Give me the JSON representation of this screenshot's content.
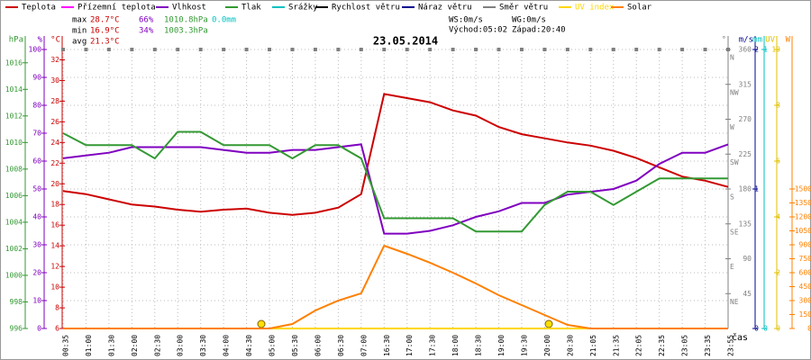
{
  "chart_data": {
    "type": "line",
    "title": "23.05.2014",
    "x_label": "čas",
    "stats": {
      "max": [
        "max",
        "28.7°C",
        "66%",
        "1010.8hPa",
        "0.0mm"
      ],
      "min": [
        "min",
        "16.9°C",
        "34%",
        "1003.3hPa"
      ],
      "avg": [
        "avg",
        "21.3°C"
      ],
      "wind": [
        "WS:0m/s",
        "WG:0m/s"
      ],
      "sun": [
        "Východ:05:02",
        "Západ:20:40"
      ]
    },
    "categories": [
      "00:35",
      "01:00",
      "01:30",
      "02:00",
      "02:30",
      "03:00",
      "03:30",
      "04:00",
      "04:30",
      "05:00",
      "05:30",
      "06:00",
      "06:30",
      "07:00",
      "16:30",
      "17:00",
      "17:30",
      "18:00",
      "18:30",
      "19:00",
      "19:30",
      "20:00",
      "20:30",
      "21:05",
      "21:35",
      "22:05",
      "22:35",
      "23:05",
      "23:35",
      "23:55"
    ],
    "grid": true,
    "axes": {
      "pressure": {
        "unit": "hPa",
        "color": "#339933",
        "lim": [
          996,
          1017
        ],
        "ticks": [
          996,
          998,
          1000,
          1002,
          1004,
          1006,
          1008,
          1010,
          1012,
          1014,
          1016
        ]
      },
      "humidity": {
        "unit": "%",
        "color": "#8000c0",
        "lim": [
          0,
          100
        ],
        "ticks": [
          0,
          10,
          20,
          30,
          40,
          50,
          60,
          70,
          80,
          90,
          100
        ]
      },
      "temp": {
        "unit": "°C",
        "color": "#cc0000",
        "lim": [
          6,
          33
        ],
        "ticks": [
          6,
          8,
          10,
          12,
          14,
          16,
          18,
          20,
          22,
          24,
          26,
          28,
          30,
          32
        ]
      },
      "direction": {
        "unit": "°",
        "color": "#808080",
        "lim": [
          0,
          360
        ],
        "ticks": [
          45,
          90,
          135,
          180,
          225,
          270,
          315,
          360
        ],
        "compass": [
          {
            "value": 45,
            "label": "NE"
          },
          {
            "value": 90,
            "label": "E"
          },
          {
            "value": 135,
            "label": "SE"
          },
          {
            "value": 180,
            "label": "S"
          },
          {
            "value": 225,
            "label": "SW"
          },
          {
            "value": 270,
            "label": "W"
          },
          {
            "value": 315,
            "label": "NW"
          },
          {
            "value": 360,
            "label": "N"
          }
        ]
      },
      "wind": {
        "unit": "m/s",
        "color": "#000090",
        "lim": [
          0,
          2
        ],
        "ticks": [
          0,
          1,
          2
        ]
      },
      "rain": {
        "unit": "mm",
        "color": "#00c0c0",
        "lim": [
          0,
          1
        ],
        "ticks": [
          0,
          1
        ]
      },
      "uv": {
        "unit": "UV",
        "color": "#e0c000",
        "lim": [
          0,
          10
        ],
        "ticks": [
          0,
          2,
          4,
          6,
          8,
          10
        ]
      },
      "solar": {
        "unit": "W",
        "color": "#ff8000",
        "lim": [
          0,
          3000
        ],
        "ticks": [
          0,
          150,
          300,
          450,
          600,
          750,
          900,
          1050,
          1200,
          1350,
          1500
        ]
      }
    },
    "series": [
      {
        "name": "Teplota",
        "color": "#cc0000",
        "axis": "temp",
        "values": [
          19.3,
          19.0,
          18.5,
          18.0,
          17.8,
          17.5,
          17.3,
          17.5,
          17.6,
          17.2,
          17.0,
          17.2,
          17.7,
          19.0,
          28.7,
          28.3,
          27.9,
          27.1,
          26.6,
          25.5,
          24.8,
          24.4,
          24.0,
          23.7,
          23.2,
          22.5,
          21.6,
          20.7,
          20.3,
          19.7
        ]
      },
      {
        "name": "Přízemní teplota",
        "color": "#ff00ff",
        "axis": "temp",
        "values": [
          null,
          null,
          null,
          null,
          null,
          null,
          null,
          null,
          null,
          null,
          null,
          null,
          null,
          null,
          null,
          null,
          null,
          null,
          null,
          null,
          null,
          null,
          null,
          null,
          null,
          null,
          null,
          null,
          null,
          null
        ]
      },
      {
        "name": "Vlhkost",
        "color": "#8000c0",
        "axis": "humidity",
        "values": [
          61,
          62,
          63,
          65,
          65,
          65,
          65,
          64,
          63,
          63,
          64,
          64,
          65,
          66,
          34,
          34,
          35,
          37,
          40,
          42,
          45,
          45,
          48,
          49,
          50,
          53,
          59,
          63,
          63,
          66
        ]
      },
      {
        "name": "Tlak",
        "color": "#339933",
        "axis": "pressure",
        "values": [
          1010.7,
          1009.8,
          1009.8,
          1009.8,
          1008.8,
          1010.8,
          1010.8,
          1009.8,
          1009.8,
          1009.8,
          1008.8,
          1009.8,
          1009.8,
          1008.8,
          1004.3,
          1004.3,
          1004.3,
          1004.3,
          1003.3,
          1003.3,
          1003.3,
          1005.3,
          1006.3,
          1006.3,
          1005.3,
          1006.3,
          1007.3,
          1007.3,
          1007.3,
          1007.3
        ]
      },
      {
        "name": "Srážky",
        "color": "#00c0c0",
        "axis": "rain",
        "values": [
          0,
          0,
          0,
          0,
          0,
          0,
          0,
          0,
          0,
          0,
          0,
          0,
          0,
          0,
          0,
          0,
          0,
          0,
          0,
          0,
          0,
          0,
          0,
          0,
          0,
          0,
          0,
          0,
          0,
          0
        ]
      },
      {
        "name": "Rychlost větru",
        "color": "#000000",
        "axis": "wind",
        "values": [
          0,
          0,
          0,
          0,
          0,
          0,
          0,
          0,
          0,
          0,
          0,
          0,
          0,
          0,
          0,
          0,
          0,
          0,
          0,
          0,
          0,
          0,
          0,
          0,
          0,
          0,
          0,
          0,
          0,
          0
        ]
      },
      {
        "name": "Náraz větru",
        "color": "#000090",
        "axis": "wind",
        "values": [
          0,
          0,
          0,
          0,
          0,
          0,
          0,
          0,
          0,
          0,
          0,
          0,
          0,
          0,
          0,
          0,
          0,
          0,
          0,
          0,
          0,
          0,
          0,
          0,
          0,
          0,
          0,
          0,
          0,
          0
        ]
      },
      {
        "name": "Směr větru",
        "color": "#808080",
        "axis": "direction",
        "marker": "square",
        "values": [
          360,
          360,
          360,
          360,
          360,
          360,
          360,
          360,
          360,
          360,
          360,
          360,
          360,
          360,
          360,
          360,
          360,
          360,
          360,
          360,
          360,
          360,
          360,
          360,
          360,
          360,
          360,
          360,
          360,
          360
        ]
      },
      {
        "name": "UV index",
        "color": "#ffd700",
        "axis": "uv",
        "values": [
          0,
          0,
          0,
          0,
          0,
          0,
          0,
          0,
          0,
          0,
          0,
          0,
          0,
          0,
          0,
          0,
          0,
          0,
          0,
          0,
          0,
          0,
          0,
          0,
          0,
          0,
          0,
          0,
          0,
          0
        ]
      },
      {
        "name": "Solar",
        "color": "#ff8000",
        "axis": "solar",
        "values": [
          0,
          0,
          0,
          0,
          0,
          0,
          0,
          0,
          0,
          0,
          48,
          194,
          300,
          378,
          890,
          803,
          707,
          600,
          484,
          358,
          252,
          145,
          39,
          0,
          0,
          0,
          0,
          0,
          0,
          0
        ]
      }
    ]
  }
}
